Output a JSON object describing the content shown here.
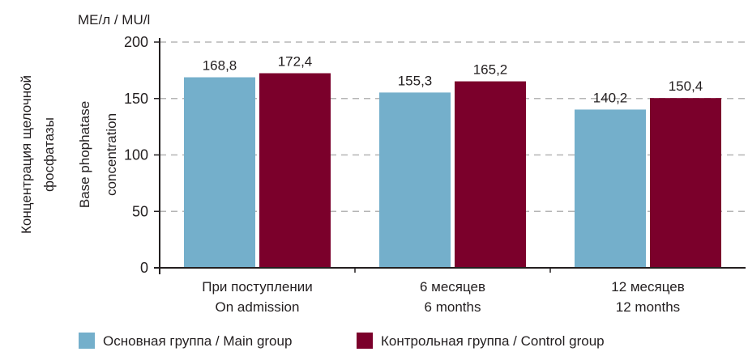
{
  "chart_data": {
    "type": "bar",
    "unit_label": "МЕ/л / MU/l",
    "ylabel_ru": [
      "Концентрация щелочной",
      "фосфатазы"
    ],
    "ylabel_en": [
      "Base phophatase",
      "concentration"
    ],
    "categories": [
      [
        "При поступлении",
        "On admission"
      ],
      [
        "6 месяцев",
        "6 months"
      ],
      [
        "12 месяцев",
        "12 months"
      ]
    ],
    "series": [
      {
        "name": "Основная группа / Main group",
        "color": "#74afcb",
        "values": [
          168.8,
          155.3,
          140.2
        ],
        "labels": [
          "168,8",
          "155,3",
          "140,2"
        ]
      },
      {
        "name": "Контрольная группа / Control group",
        "color": "#7b002b",
        "values": [
          172.4,
          165.2,
          150.4
        ],
        "labels": [
          "172,4",
          "165,2",
          "150,4"
        ]
      }
    ],
    "ylim": [
      0,
      200
    ],
    "yticks": [
      0,
      50,
      100,
      150,
      200
    ],
    "grid": true,
    "legend": "bottom"
  }
}
